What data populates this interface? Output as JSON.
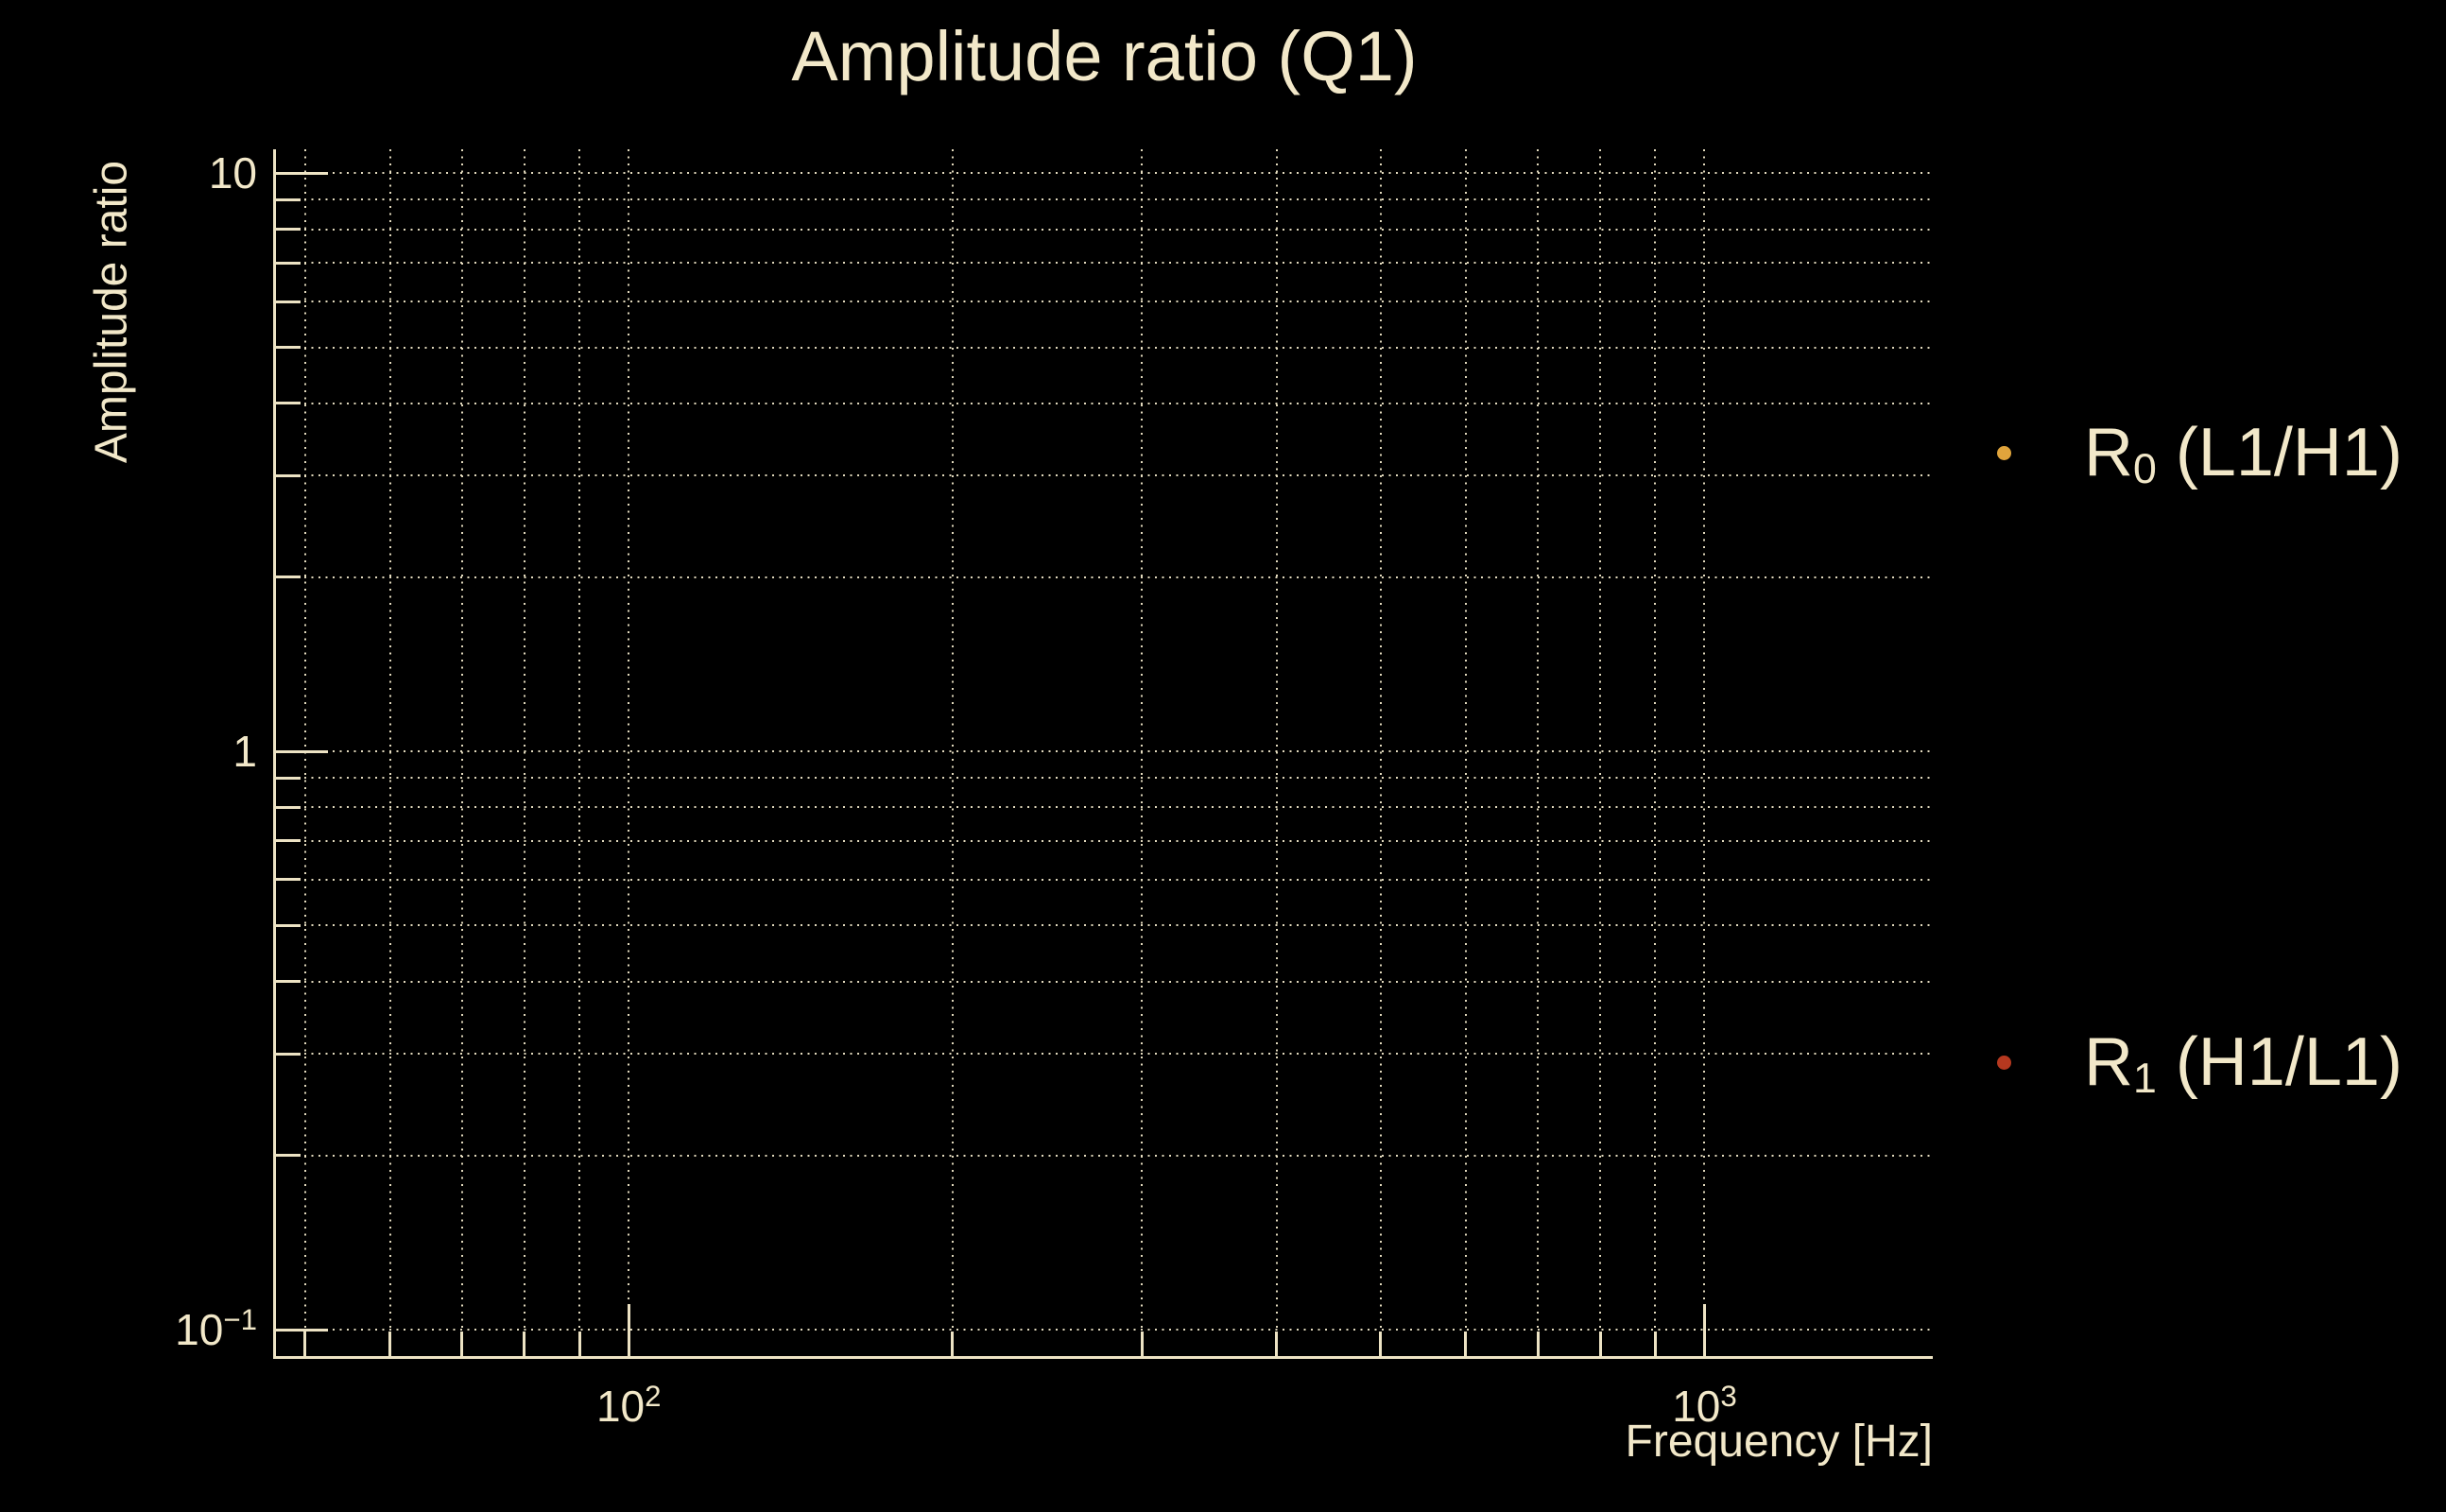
{
  "figure": {
    "title": "Amplitude ratio (Q1)",
    "background_color": "#000000",
    "foreground_color": "#F2E8C9"
  },
  "axes": {
    "x": {
      "label": "Frequency [Hz]",
      "scale": "log",
      "tick_labels": [
        {
          "base": "10",
          "exp": "2",
          "value": 100
        },
        {
          "base": "10",
          "exp": "3",
          "value": 1000
        }
      ]
    },
    "y": {
      "label": "Amplitude ratio",
      "scale": "log",
      "tick_labels": [
        {
          "base": "10",
          "exp": "",
          "value": 10
        },
        {
          "base": "1",
          "exp": "",
          "value": 1
        },
        {
          "base": "10",
          "exp": "−1",
          "value": 0.1
        }
      ]
    }
  },
  "legend": {
    "position": "outside-right",
    "entries": [
      {
        "prefix": "R",
        "sub": "0",
        "rest": " (L1/H1)",
        "marker": "dot",
        "marker_color": "#E0A43C"
      },
      {
        "prefix": "R",
        "sub": "1",
        "rest": " (H1/L1)",
        "marker": "dot",
        "marker_color": "#B5381F"
      }
    ]
  },
  "chart_data": {
    "type": "scatter",
    "title": "Amplitude ratio (Q1)",
    "xlabel": "Frequency [Hz]",
    "ylabel": "Amplitude ratio",
    "xscale": "log",
    "yscale": "log",
    "xlim": [
      47,
      1630
    ],
    "ylim": [
      0.09,
      11
    ],
    "grid": "on",
    "minor_grid": "on",
    "grid_style": "dotted",
    "legend_position": "outside-right",
    "series": [
      {
        "name": "R0 (L1/H1)",
        "marker": "point",
        "color": "#E0A43C",
        "x": [],
        "y": []
      },
      {
        "name": "R1 (H1/L1)",
        "marker": "point",
        "color": "#B5381F",
        "x": [],
        "y": []
      }
    ],
    "note": "plot area is empty - no data points are visible, only major/minor dotted gridlines",
    "x_major_gridlines": [
      100,
      1000
    ],
    "x_minor_gridlines": [
      50,
      60,
      70,
      80,
      90,
      200,
      300,
      400,
      500,
      600,
      700,
      800,
      900
    ],
    "y_major_gridlines": [
      10,
      1,
      0.1
    ],
    "y_minor_gridlines": [
      9,
      8,
      7,
      6,
      5,
      4,
      3,
      2,
      0.9,
      0.8,
      0.7,
      0.6,
      0.5,
      0.4,
      0.3,
      0.2
    ]
  }
}
